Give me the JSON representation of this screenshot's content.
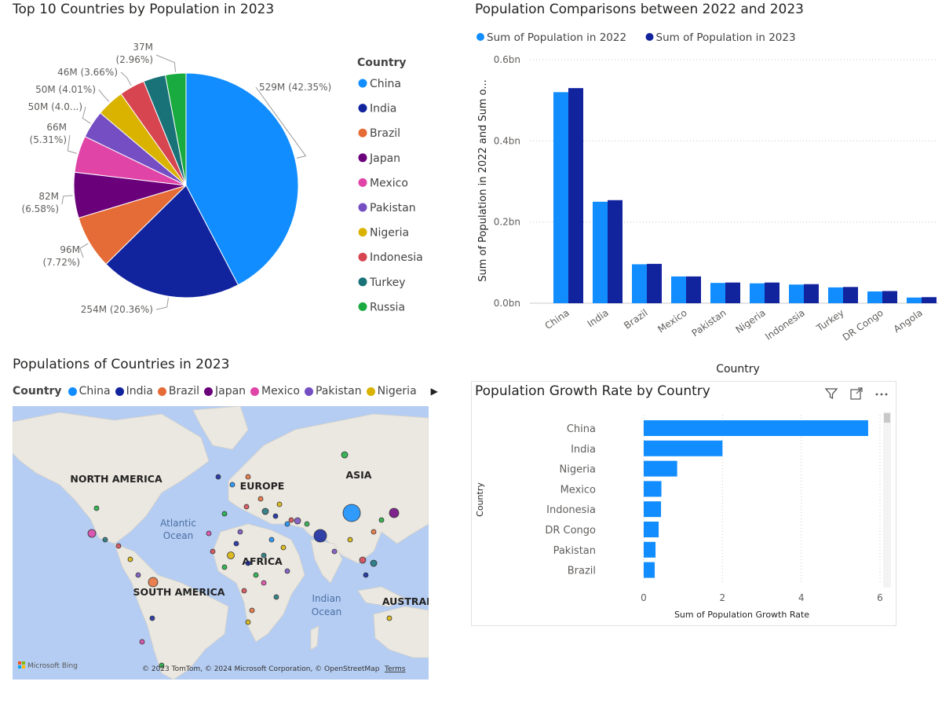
{
  "pie": {
    "title": "Top 10 Countries by Population in 2023",
    "legend_title": "Country"
  },
  "bar": {
    "title": "Population Comparisons between 2022 and 2023",
    "legend": [
      "Sum of Population in 2022",
      "Sum of Population in 2023"
    ],
    "ylabel": "Sum of Population in 2022 and Sum o...",
    "xlabel": "Country",
    "yticks": [
      "0.0bn",
      "0.2bn",
      "0.4bn",
      "0.6bn"
    ]
  },
  "map": {
    "title": "Populations of Countries in 2023",
    "legend_title": "Country",
    "legend_items": [
      {
        "label": "China",
        "color": "#118DFF"
      },
      {
        "label": "India",
        "color": "#12239E"
      },
      {
        "label": "Brazil",
        "color": "#E66C37"
      },
      {
        "label": "Japan",
        "color": "#6B007B"
      },
      {
        "label": "Mexico",
        "color": "#E044A7"
      },
      {
        "label": "Pakistan",
        "color": "#744EC2"
      },
      {
        "label": "Nigeria",
        "color": "#D9B300"
      }
    ],
    "labels": {
      "north_america": "NORTH AMERICA",
      "europe": "EUROPE",
      "asia": "ASIA",
      "africa": "AFRICA",
      "south_america": "SOUTH AMERICA",
      "australia": "AUSTRAL",
      "atlantic1": "Atlantic",
      "atlantic2": "Ocean",
      "indian1": "Indian",
      "indian2": "Ocean"
    },
    "attribution": "© 2023 TomTom, © 2024 Microsoft Corporation, © OpenStreetMap",
    "terms": "Terms",
    "bing": "Microsoft Bing"
  },
  "growth": {
    "title": "Population Growth Rate by Country",
    "ylabel": "Country",
    "xlabel": "Sum of Population Growth Rate",
    "xticks": [
      "0",
      "2",
      "4",
      "6"
    ]
  },
  "chart_data": [
    {
      "type": "pie",
      "title": "Top 10 Countries by Population in 2023",
      "legend_placement": "right",
      "slices": [
        {
          "label": "China",
          "value": 529,
          "text": "529M (42.35%)",
          "color": "#118DFF"
        },
        {
          "label": "India",
          "value": 254,
          "text": "254M (20.36%)",
          "color": "#12239E"
        },
        {
          "label": "Brazil",
          "value": 96,
          "text": "96M (7.72%)",
          "color": "#E66C37"
        },
        {
          "label": "Japan",
          "value": 82,
          "text": "82M (6.58%)",
          "color": "#6B007B"
        },
        {
          "label": "Mexico",
          "value": 66,
          "text": "66M (5.31%)",
          "color": "#E044A7"
        },
        {
          "label": "Pakistan",
          "value": 50,
          "text": "50M (4.0...)",
          "color": "#744EC2"
        },
        {
          "label": "Nigeria",
          "value": 50,
          "text": "50M (4.01%)",
          "color": "#D9B300"
        },
        {
          "label": "Indonesia",
          "value": 46,
          "text": "46M (3.66%)",
          "color": "#D64550"
        },
        {
          "label": "Turkey",
          "value": 40,
          "text": "",
          "color": "#197278"
        },
        {
          "label": "Russia",
          "value": 37,
          "text": "37M (2.96%)",
          "color": "#1AAB40"
        }
      ]
    },
    {
      "type": "bar",
      "title": "Population Comparisons between 2022 and 2023",
      "categories": [
        "China",
        "India",
        "Brazil",
        "Mexico",
        "Pakistan",
        "Nigeria",
        "Indonesia",
        "Turkey",
        "DR Congo",
        "Angola"
      ],
      "series": [
        {
          "name": "Sum of Population in 2022",
          "color": "#118DFF",
          "values": [
            0.52,
            0.25,
            0.096,
            0.066,
            0.05,
            0.049,
            0.046,
            0.039,
            0.029,
            0.014
          ]
        },
        {
          "name": "Sum of Population in 2023",
          "color": "#12239E",
          "values": [
            0.53,
            0.254,
            0.097,
            0.066,
            0.051,
            0.051,
            0.047,
            0.04,
            0.03,
            0.015
          ]
        }
      ],
      "ylim": [
        0,
        0.6
      ],
      "grid": true,
      "legend_placement": "top-left"
    },
    {
      "type": "bar",
      "orientation": "horizontal",
      "title": "Population Growth Rate by Country",
      "categories": [
        "China",
        "India",
        "Nigeria",
        "Mexico",
        "Indonesia",
        "DR Congo",
        "Pakistan",
        "Brazil"
      ],
      "values": [
        5.7,
        2.0,
        0.85,
        0.45,
        0.44,
        0.38,
        0.3,
        0.28
      ],
      "color": "#118DFF",
      "xlim": [
        0,
        6
      ],
      "grid": true
    }
  ]
}
